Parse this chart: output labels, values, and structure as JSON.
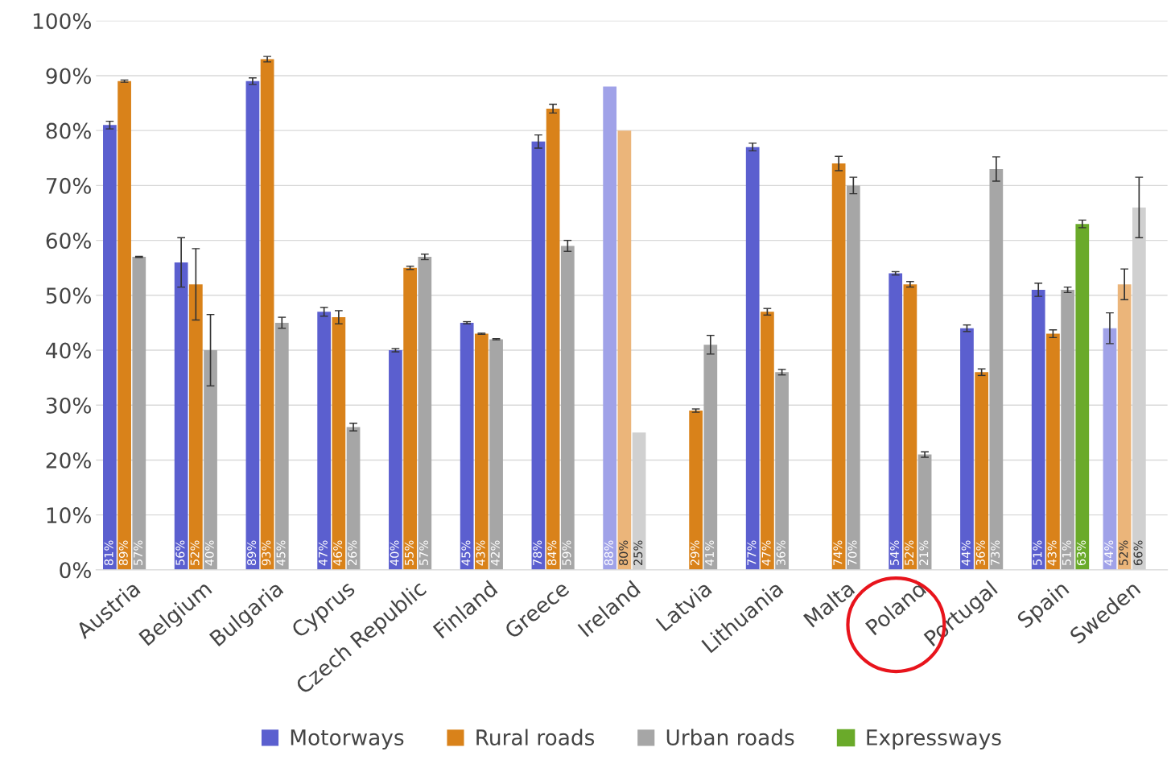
{
  "chart_data": {
    "type": "bar",
    "categories": [
      "Austria",
      "Belgium",
      "Bulgaria",
      "Cyprus",
      "Czech Republic",
      "Finland",
      "Greece",
      "Ireland",
      "Latvia",
      "Lithuania",
      "Malta",
      "Poland",
      "Portugal",
      "Spain",
      "Sweden"
    ],
    "series": [
      {
        "name": "Motorways",
        "color": "#5b5fcf",
        "colors": [
          "#5b5fcf",
          "#5b5fcf",
          "#5b5fcf",
          "#5b5fcf",
          "#5b5fcf",
          "#5b5fcf",
          "#5b5fcf",
          "#a0a2e8",
          "#5b5fcf",
          "#5b5fcf",
          "#5b5fcf",
          "#5b5fcf",
          "#5b5fcf",
          "#5b5fcf",
          "#a0a2e8"
        ],
        "values": [
          81,
          56,
          89,
          47,
          40,
          45,
          78,
          88,
          null,
          77,
          null,
          54,
          44,
          51,
          44
        ],
        "errors": [
          0.7,
          4.5,
          0.6,
          0.8,
          0.3,
          0.2,
          1.2,
          null,
          null,
          0.7,
          null,
          0.3,
          0.6,
          1.2,
          2.8
        ],
        "value_labels": [
          "81%",
          "56%",
          "89%",
          "47%",
          "40%",
          "45%",
          "78%",
          "88%",
          null,
          "77%",
          null,
          "54%",
          "44%",
          "51%",
          "44%"
        ]
      },
      {
        "name": "Rural roads",
        "color": "#d9821a",
        "colors": [
          "#d9821a",
          "#d9821a",
          "#d9821a",
          "#d9821a",
          "#d9821a",
          "#d9821a",
          "#d9821a",
          "#ebb57a",
          "#d9821a",
          "#d9821a",
          "#d9821a",
          "#d9821a",
          "#d9821a",
          "#d9821a",
          "#ebb57a"
        ],
        "values": [
          89,
          52,
          93,
          46,
          55,
          43,
          84,
          80,
          29,
          47,
          74,
          52,
          36,
          43,
          52
        ],
        "errors": [
          0.2,
          6.5,
          0.5,
          1.2,
          0.3,
          0.1,
          0.8,
          null,
          0.3,
          0.6,
          1.3,
          0.5,
          0.6,
          0.7,
          2.8
        ],
        "value_labels": [
          "89%",
          "52%",
          "93%",
          "46%",
          "55%",
          "43%",
          "84%",
          "80%",
          "29%",
          "47%",
          "74%",
          "52%",
          "36%",
          "43%",
          "52%"
        ]
      },
      {
        "name": "Urban roads",
        "color": "#a6a6a6",
        "colors": [
          "#a6a6a6",
          "#a6a6a6",
          "#a6a6a6",
          "#a6a6a6",
          "#a6a6a6",
          "#a6a6a6",
          "#a6a6a6",
          "#d0d0d0",
          "#a6a6a6",
          "#a6a6a6",
          "#a6a6a6",
          "#a6a6a6",
          "#a6a6a6",
          "#a6a6a6",
          "#d0d0d0"
        ],
        "values": [
          57,
          40,
          45,
          26,
          57,
          42,
          59,
          25,
          41,
          36,
          70,
          21,
          73,
          51,
          66
        ],
        "errors": [
          0.1,
          6.5,
          1,
          0.7,
          0.5,
          0.1,
          1,
          null,
          1.7,
          0.5,
          1.5,
          0.5,
          2.2,
          0.5,
          5.5
        ],
        "value_labels": [
          "57%",
          "40%",
          "45%",
          "26%",
          "57%",
          "42%",
          "59%",
          "25%",
          "41%",
          "36%",
          "70%",
          "21%",
          "73%",
          "51%",
          "66%"
        ]
      },
      {
        "name": "Expressways",
        "color": "#6aaa2a",
        "values": [
          null,
          null,
          null,
          null,
          null,
          null,
          null,
          null,
          null,
          null,
          null,
          null,
          null,
          63,
          null
        ],
        "errors": [
          null,
          null,
          null,
          null,
          null,
          null,
          null,
          null,
          null,
          null,
          null,
          null,
          null,
          0.7,
          null
        ],
        "value_labels": [
          null,
          null,
          null,
          null,
          null,
          null,
          null,
          null,
          null,
          null,
          null,
          null,
          null,
          "63%",
          null
        ]
      }
    ],
    "ylim": [
      0,
      100
    ],
    "yticks": [
      {
        "value": 0,
        "label": "0%"
      },
      {
        "value": 10,
        "label": "10%"
      },
      {
        "value": 20,
        "label": "20%"
      },
      {
        "value": 30,
        "label": "30%"
      },
      {
        "value": 40,
        "label": "40%"
      },
      {
        "value": 50,
        "label": "50%"
      },
      {
        "value": 60,
        "label": "60%"
      },
      {
        "value": 70,
        "label": "70%"
      },
      {
        "value": 80,
        "label": "80%"
      },
      {
        "value": 90,
        "label": "90%"
      },
      {
        "value": 100,
        "label": "100%"
      }
    ],
    "grid": "y",
    "legend": "bottom"
  }
}
